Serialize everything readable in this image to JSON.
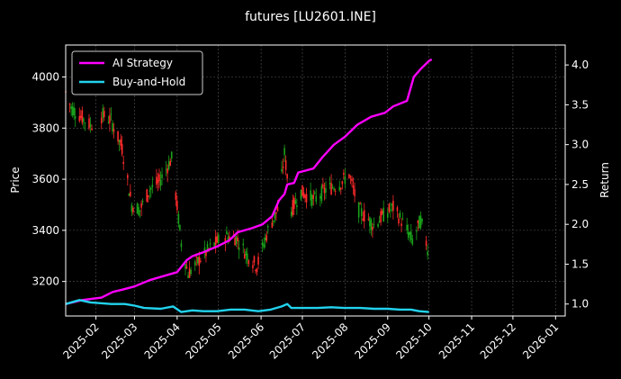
{
  "chart_data": {
    "type": "line",
    "title": "futures [LU2601.INE]",
    "xlabel": "",
    "ylabel_left": "Price",
    "ylabel_right": "Return",
    "x_range": [
      "2025-01-10",
      "2026-01-08"
    ],
    "ylim_left": [
      3065,
      4125
    ],
    "ylim_right": [
      0.85,
      4.25
    ],
    "x_ticks": [
      "2025-02",
      "2025-03",
      "2025-04",
      "2025-05",
      "2025-06",
      "2025-07",
      "2025-08",
      "2025-09",
      "2025-10",
      "2025-11",
      "2025-12",
      "2026-01"
    ],
    "y_ticks_left": [
      3200,
      3400,
      3600,
      3800,
      4000
    ],
    "y_ticks_right": [
      1.0,
      1.5,
      2.0,
      2.5,
      3.0,
      3.5,
      4.0
    ],
    "grid": true,
    "legend_position": "top-left",
    "colors": {
      "background": "#000000",
      "up_candle": "#ff2a2a",
      "down_candle": "#1aa31a",
      "grid": "#555555"
    },
    "candlesticks": {
      "axis": "left",
      "legend_label": "",
      "price_anchors": [
        [
          "2025-01-10",
          3940
        ],
        [
          "2025-01-14",
          3880
        ],
        [
          "2025-01-28",
          3810
        ],
        [
          "2025-02-06",
          3850
        ],
        [
          "2025-02-12",
          3830
        ],
        [
          "2025-02-20",
          3720
        ],
        [
          "2025-02-27",
          3500
        ],
        [
          "2025-03-05",
          3480
        ],
        [
          "2025-03-12",
          3560
        ],
        [
          "2025-03-19",
          3590
        ],
        [
          "2025-03-25",
          3650
        ],
        [
          "2025-03-28",
          3680
        ],
        [
          "2025-04-04",
          3350
        ],
        [
          "2025-04-09",
          3230
        ],
        [
          "2025-04-18",
          3290
        ],
        [
          "2025-04-25",
          3330
        ],
        [
          "2025-05-05",
          3380
        ],
        [
          "2025-05-14",
          3370
        ],
        [
          "2025-05-21",
          3310
        ],
        [
          "2025-05-29",
          3260
        ],
        [
          "2025-06-06",
          3400
        ],
        [
          "2025-06-13",
          3480
        ],
        [
          "2025-06-18",
          3700
        ],
        [
          "2025-06-23",
          3480
        ],
        [
          "2025-06-30",
          3550
        ],
        [
          "2025-07-10",
          3520
        ],
        [
          "2025-07-18",
          3560
        ],
        [
          "2025-07-28",
          3580
        ],
        [
          "2025-08-04",
          3620
        ],
        [
          "2025-08-11",
          3480
        ],
        [
          "2025-08-22",
          3420
        ],
        [
          "2025-08-29",
          3460
        ],
        [
          "2025-09-05",
          3490
        ],
        [
          "2025-09-12",
          3430
        ],
        [
          "2025-09-19",
          3360
        ],
        [
          "2025-09-25",
          3440
        ],
        [
          "2025-09-30",
          3330
        ]
      ]
    },
    "series": [
      {
        "name": "AI Strategy",
        "axis": "right",
        "color": "#ff00ff",
        "points": [
          [
            "2025-01-10",
            1.0
          ],
          [
            "2025-01-22",
            1.05
          ],
          [
            "2025-02-05",
            1.08
          ],
          [
            "2025-02-13",
            1.15
          ],
          [
            "2025-02-20",
            1.18
          ],
          [
            "2025-03-01",
            1.22
          ],
          [
            "2025-03-12",
            1.3
          ],
          [
            "2025-03-22",
            1.35
          ],
          [
            "2025-04-01",
            1.4
          ],
          [
            "2025-04-08",
            1.55
          ],
          [
            "2025-04-12",
            1.6
          ],
          [
            "2025-04-20",
            1.65
          ],
          [
            "2025-05-01",
            1.73
          ],
          [
            "2025-05-09",
            1.8
          ],
          [
            "2025-05-15",
            1.9
          ],
          [
            "2025-05-25",
            1.95
          ],
          [
            "2025-06-02",
            2.0
          ],
          [
            "2025-06-09",
            2.1
          ],
          [
            "2025-06-14",
            2.3
          ],
          [
            "2025-06-18",
            2.38
          ],
          [
            "2025-06-20",
            2.5
          ],
          [
            "2025-06-25",
            2.52
          ],
          [
            "2025-06-28",
            2.65
          ],
          [
            "2025-07-09",
            2.7
          ],
          [
            "2025-07-16",
            2.85
          ],
          [
            "2025-07-24",
            3.0
          ],
          [
            "2025-08-01",
            3.1
          ],
          [
            "2025-08-10",
            3.25
          ],
          [
            "2025-08-20",
            3.35
          ],
          [
            "2025-08-30",
            3.4
          ],
          [
            "2025-09-05",
            3.48
          ],
          [
            "2025-09-15",
            3.55
          ],
          [
            "2025-09-20",
            3.85
          ],
          [
            "2025-09-25",
            3.95
          ],
          [
            "2025-10-01",
            4.05
          ],
          [
            "2025-10-03",
            4.07
          ]
        ]
      },
      {
        "name": "Buy-and-Hold",
        "axis": "right",
        "color": "#22d3ee",
        "points": [
          [
            "2025-01-10",
            1.0
          ],
          [
            "2025-01-20",
            1.05
          ],
          [
            "2025-01-28",
            1.02
          ],
          [
            "2025-02-12",
            1.0
          ],
          [
            "2025-02-22",
            1.0
          ],
          [
            "2025-03-01",
            0.98
          ],
          [
            "2025-03-08",
            0.95
          ],
          [
            "2025-03-20",
            0.94
          ],
          [
            "2025-03-29",
            0.97
          ],
          [
            "2025-04-04",
            0.9
          ],
          [
            "2025-04-12",
            0.92
          ],
          [
            "2025-04-20",
            0.91
          ],
          [
            "2025-04-30",
            0.91
          ],
          [
            "2025-05-10",
            0.93
          ],
          [
            "2025-05-20",
            0.93
          ],
          [
            "2025-05-30",
            0.91
          ],
          [
            "2025-06-08",
            0.93
          ],
          [
            "2025-06-16",
            0.97
          ],
          [
            "2025-06-20",
            1.0
          ],
          [
            "2025-06-23",
            0.95
          ],
          [
            "2025-07-02",
            0.95
          ],
          [
            "2025-07-12",
            0.95
          ],
          [
            "2025-07-22",
            0.96
          ],
          [
            "2025-08-01",
            0.95
          ],
          [
            "2025-08-12",
            0.95
          ],
          [
            "2025-08-22",
            0.94
          ],
          [
            "2025-09-01",
            0.94
          ],
          [
            "2025-09-10",
            0.93
          ],
          [
            "2025-09-18",
            0.93
          ],
          [
            "2025-09-24",
            0.91
          ],
          [
            "2025-10-01",
            0.9
          ]
        ]
      }
    ]
  }
}
